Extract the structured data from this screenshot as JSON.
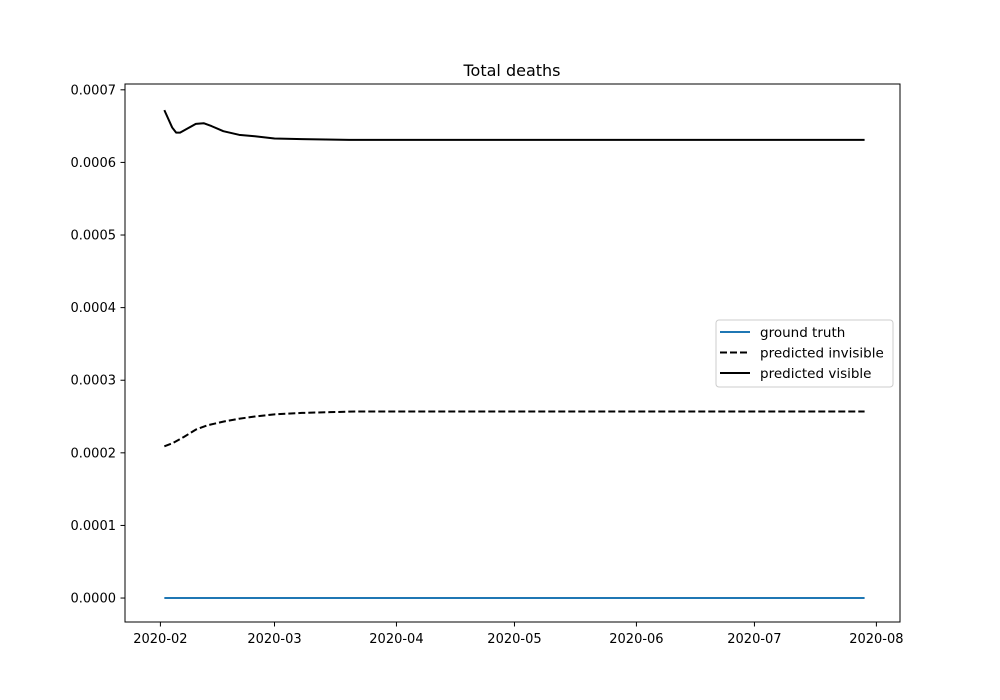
{
  "chart_data": {
    "type": "line",
    "title": "Total deaths",
    "xlabel": "",
    "ylabel": "",
    "x_axis_type": "date",
    "xlim": [
      "2020-01-23",
      "2020-08-07"
    ],
    "ylim": [
      -3.3e-05,
      0.000708
    ],
    "x_ticks": [
      "2020-02-01",
      "2020-03-01",
      "2020-04-01",
      "2020-05-01",
      "2020-06-01",
      "2020-07-01",
      "2020-08-01"
    ],
    "x_tick_labels": [
      "2020-02",
      "2020-03",
      "2020-04",
      "2020-05",
      "2020-06",
      "2020-07",
      "2020-08"
    ],
    "y_ticks": [
      0.0,
      0.0001,
      0.0002,
      0.0003,
      0.0004,
      0.0005,
      0.0006,
      0.0007
    ],
    "y_tick_labels": [
      "0.0000",
      "0.0001",
      "0.0002",
      "0.0003",
      "0.0004",
      "0.0005",
      "0.0006",
      "0.0007"
    ],
    "grid": false,
    "legend_position": "center-right",
    "series": [
      {
        "name": "ground truth",
        "color": "#1f77b4",
        "style": "solid",
        "points": [
          [
            "2020-02-02",
            0.0
          ],
          [
            "2020-07-29",
            0.0
          ]
        ]
      },
      {
        "name": "predicted invisible",
        "color": "#000000",
        "style": "dashed",
        "points": [
          [
            "2020-02-02",
            0.000209
          ],
          [
            "2020-02-04",
            0.000213
          ],
          [
            "2020-02-07",
            0.000222
          ],
          [
            "2020-02-10",
            0.000232
          ],
          [
            "2020-02-13",
            0.000238
          ],
          [
            "2020-02-17",
            0.000243
          ],
          [
            "2020-02-21",
            0.000247
          ],
          [
            "2020-02-25",
            0.00025
          ],
          [
            "2020-03-01",
            0.000253
          ],
          [
            "2020-03-08",
            0.000255
          ],
          [
            "2020-03-15",
            0.000256
          ],
          [
            "2020-03-22",
            0.000257
          ],
          [
            "2020-04-01",
            0.000257
          ],
          [
            "2020-05-01",
            0.000257
          ],
          [
            "2020-06-01",
            0.000257
          ],
          [
            "2020-07-01",
            0.000257
          ],
          [
            "2020-07-29",
            0.000257
          ]
        ]
      },
      {
        "name": "predicted visible",
        "color": "#000000",
        "style": "solid",
        "points": [
          [
            "2020-02-02",
            0.000672
          ],
          [
            "2020-02-04",
            0.000648
          ],
          [
            "2020-02-05",
            0.000641
          ],
          [
            "2020-02-06",
            0.000641
          ],
          [
            "2020-02-08",
            0.000647
          ],
          [
            "2020-02-10",
            0.000653
          ],
          [
            "2020-02-12",
            0.000654
          ],
          [
            "2020-02-14",
            0.00065
          ],
          [
            "2020-02-17",
            0.000643
          ],
          [
            "2020-02-21",
            0.000638
          ],
          [
            "2020-02-25",
            0.000636
          ],
          [
            "2020-03-01",
            0.000633
          ],
          [
            "2020-03-08",
            0.000632
          ],
          [
            "2020-03-20",
            0.000631
          ],
          [
            "2020-04-01",
            0.000631
          ],
          [
            "2020-05-01",
            0.000631
          ],
          [
            "2020-06-01",
            0.000631
          ],
          [
            "2020-07-01",
            0.000631
          ],
          [
            "2020-07-29",
            0.000631
          ]
        ]
      }
    ]
  }
}
